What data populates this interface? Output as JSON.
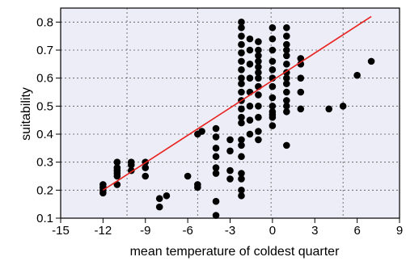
{
  "chart_data": {
    "type": "scatter",
    "title": "",
    "xlabel": "mean temperature of coldest quarter",
    "ylabel": "suitability",
    "xlim": [
      -15,
      9
    ],
    "ylim": [
      0.1,
      0.85
    ],
    "xticks": [
      -15,
      -12,
      -9,
      -6,
      -3,
      0,
      3,
      6,
      9
    ],
    "yticks": [
      0.1,
      0.2,
      0.3,
      0.4,
      0.5,
      0.6,
      0.7,
      0.8
    ],
    "xtick_labels": [
      "-15",
      "-12",
      "-9",
      "-6",
      "-3",
      "0",
      "3",
      "6",
      "9"
    ],
    "ytick_labels": [
      "0.1",
      "0.2",
      "0.3",
      "0.4",
      "0.5",
      "0.6",
      "0.7",
      "0.8"
    ],
    "grid": true,
    "grid_lines_x": [
      -10.3,
      -5.3,
      -0.1,
      5
    ],
    "grid_lines_y": [
      0.2,
      0.3,
      0.4,
      0.5,
      0.6,
      0.7,
      0.8
    ],
    "background_color": "#ededf7",
    "point_color": "#000000",
    "line_color": "#e8231f",
    "trend_line": {
      "x": [
        -12,
        7
      ],
      "y": [
        0.2,
        0.82
      ]
    },
    "points": [
      [
        -12,
        0.19
      ],
      [
        -12,
        0.2
      ],
      [
        -12,
        0.21
      ],
      [
        -12,
        0.22
      ],
      [
        -11,
        0.22
      ],
      [
        -11,
        0.25
      ],
      [
        -11,
        0.26
      ],
      [
        -11,
        0.27
      ],
      [
        -11,
        0.28
      ],
      [
        -11,
        0.3
      ],
      [
        -10,
        0.27
      ],
      [
        -10,
        0.29
      ],
      [
        -10,
        0.3
      ],
      [
        -9,
        0.25
      ],
      [
        -9,
        0.28
      ],
      [
        -9,
        0.3
      ],
      [
        -8,
        0.14
      ],
      [
        -8,
        0.17
      ],
      [
        -7.5,
        0.18
      ],
      [
        -6,
        0.25
      ],
      [
        -5.3,
        0.21
      ],
      [
        -5.3,
        0.22
      ],
      [
        -5.3,
        0.4
      ],
      [
        -5,
        0.41
      ],
      [
        -4,
        0.11
      ],
      [
        -4,
        0.16
      ],
      [
        -4,
        0.26
      ],
      [
        -4,
        0.28
      ],
      [
        -4,
        0.32
      ],
      [
        -4,
        0.35
      ],
      [
        -4,
        0.39
      ],
      [
        -4,
        0.42
      ],
      [
        -3,
        0.24
      ],
      [
        -3,
        0.27
      ],
      [
        -3,
        0.34
      ],
      [
        -3,
        0.38
      ],
      [
        -2.2,
        0.18
      ],
      [
        -2.2,
        0.2
      ],
      [
        -2.2,
        0.24
      ],
      [
        -2.2,
        0.26
      ],
      [
        -2.2,
        0.32
      ],
      [
        -2.2,
        0.36
      ],
      [
        -2.2,
        0.38
      ],
      [
        -2.2,
        0.44
      ],
      [
        -2.2,
        0.46
      ],
      [
        -2.2,
        0.49
      ],
      [
        -2.2,
        0.52
      ],
      [
        -2.2,
        0.55
      ],
      [
        -2.2,
        0.58
      ],
      [
        -2.2,
        0.6
      ],
      [
        -2.2,
        0.63
      ],
      [
        -2.2,
        0.66
      ],
      [
        -2.2,
        0.69
      ],
      [
        -2.2,
        0.72
      ],
      [
        -2.2,
        0.75
      ],
      [
        -2.2,
        0.78
      ],
      [
        -2.2,
        0.8
      ],
      [
        -1.6,
        0.4
      ],
      [
        -1.6,
        0.45
      ],
      [
        -1.6,
        0.5
      ],
      [
        -1.6,
        0.55
      ],
      [
        -1.6,
        0.6
      ],
      [
        -1.6,
        0.65
      ],
      [
        -1.6,
        0.7
      ],
      [
        -1.6,
        0.74
      ],
      [
        -1,
        0.38
      ],
      [
        -1,
        0.41
      ],
      [
        -1,
        0.46
      ],
      [
        -1,
        0.5
      ],
      [
        -1,
        0.54
      ],
      [
        -1,
        0.57
      ],
      [
        -1,
        0.6
      ],
      [
        -1,
        0.62
      ],
      [
        -1,
        0.64
      ],
      [
        -1,
        0.66
      ],
      [
        -1,
        0.68
      ],
      [
        -1,
        0.7
      ],
      [
        -1,
        0.73
      ],
      [
        0,
        0.43
      ],
      [
        0,
        0.46
      ],
      [
        0,
        0.47
      ],
      [
        0,
        0.48
      ],
      [
        0,
        0.5
      ],
      [
        0,
        0.53
      ],
      [
        0,
        0.57
      ],
      [
        0,
        0.6
      ],
      [
        0,
        0.63
      ],
      [
        0,
        0.66
      ],
      [
        0,
        0.7
      ],
      [
        0,
        0.74
      ],
      [
        0,
        0.78
      ],
      [
        1,
        0.36
      ],
      [
        1,
        0.48
      ],
      [
        1,
        0.5
      ],
      [
        1,
        0.52
      ],
      [
        1,
        0.55
      ],
      [
        1,
        0.58
      ],
      [
        1,
        0.6
      ],
      [
        1,
        0.62
      ],
      [
        1,
        0.65
      ],
      [
        1,
        0.68
      ],
      [
        1,
        0.7
      ],
      [
        1,
        0.72
      ],
      [
        1,
        0.75
      ],
      [
        1,
        0.78
      ],
      [
        2,
        0.49
      ],
      [
        2,
        0.55
      ],
      [
        2,
        0.6
      ],
      [
        2,
        0.65
      ],
      [
        2,
        0.67
      ],
      [
        4,
        0.49
      ],
      [
        5,
        0.5
      ],
      [
        6,
        0.61
      ],
      [
        7,
        0.66
      ]
    ]
  }
}
